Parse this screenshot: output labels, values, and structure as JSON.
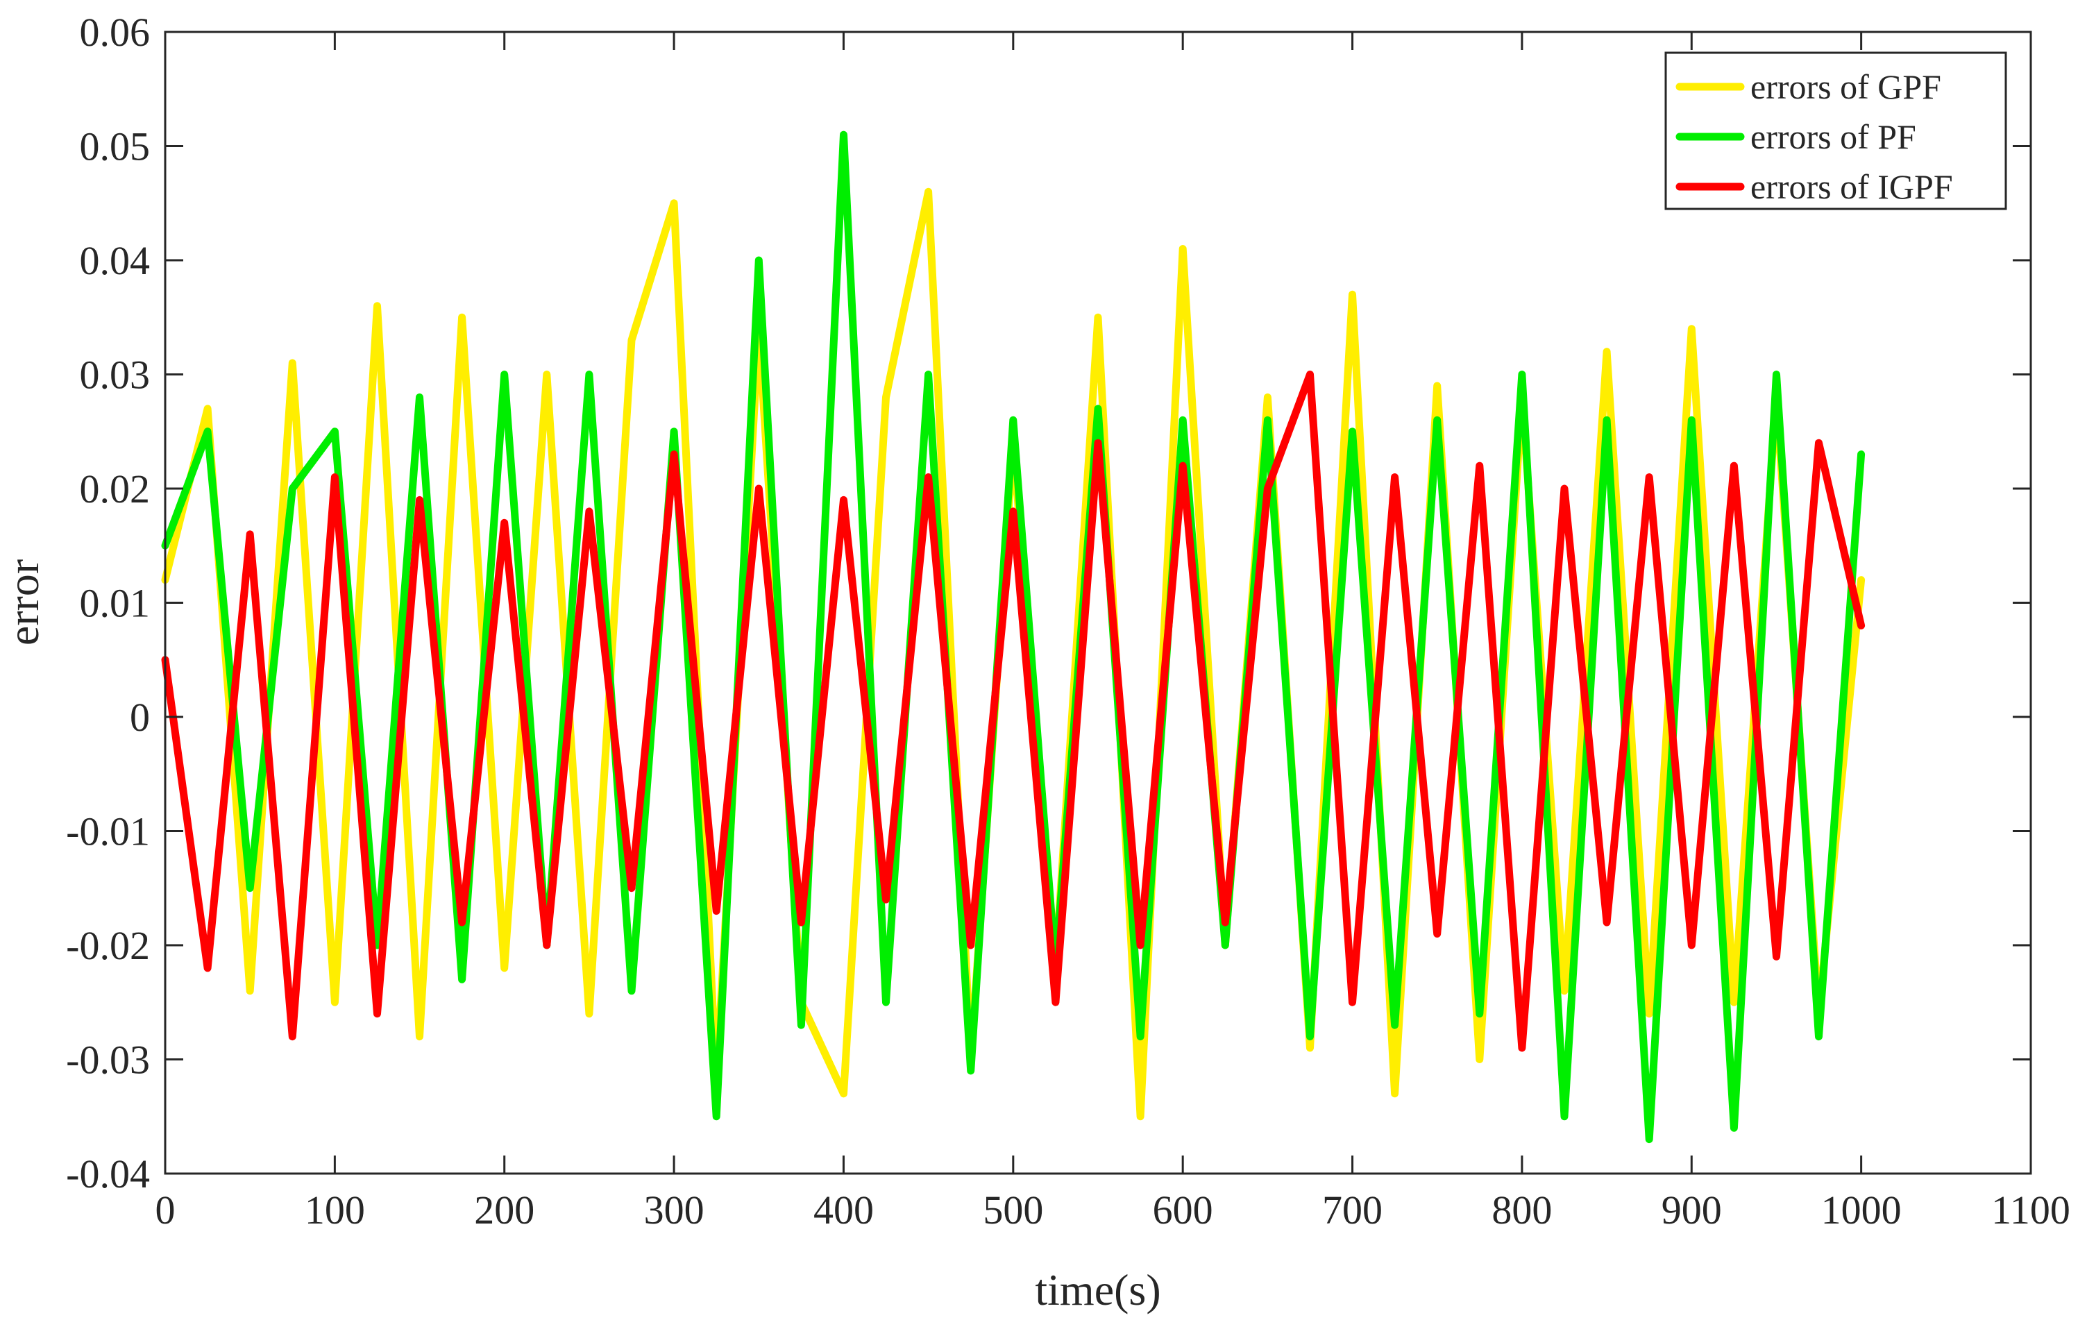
{
  "chart_data": {
    "type": "line",
    "title": "",
    "xlabel": "time(s)",
    "ylabel": "error",
    "xlim": [
      0,
      1100
    ],
    "ylim": [
      -0.04,
      0.06
    ],
    "x_ticks": [
      0,
      100,
      200,
      300,
      400,
      500,
      600,
      700,
      800,
      900,
      1000,
      1100
    ],
    "x_tick_labels": [
      "0",
      "100",
      "200",
      "300",
      "400",
      "500",
      "600",
      "700",
      "800",
      "900",
      "1000",
      "1100"
    ],
    "y_ticks": [
      -0.04,
      -0.03,
      -0.02,
      -0.01,
      0,
      0.01,
      0.02,
      0.03,
      0.04,
      0.05,
      0.06
    ],
    "y_tick_labels": [
      "-0.04",
      "-0.03",
      "-0.02",
      "-0.01",
      "0",
      "0.01",
      "0.02",
      "0.03",
      "0.04",
      "0.05",
      "0.06"
    ],
    "grid": false,
    "legend_position": "top-right",
    "x": [
      0,
      25,
      50,
      75,
      100,
      125,
      150,
      175,
      200,
      225,
      250,
      275,
      300,
      325,
      350,
      375,
      400,
      425,
      450,
      475,
      500,
      525,
      550,
      575,
      600,
      625,
      650,
      675,
      700,
      725,
      750,
      775,
      800,
      825,
      850,
      875,
      900,
      925,
      950,
      975,
      1000
    ],
    "series": [
      {
        "name": "errors of GPF",
        "color": "#FFEE00",
        "values": [
          0.012,
          0.027,
          -0.024,
          0.031,
          -0.025,
          0.036,
          -0.028,
          0.035,
          -0.022,
          0.03,
          -0.026,
          0.033,
          0.045,
          -0.032,
          0.034,
          -0.025,
          -0.033,
          0.028,
          0.046,
          -0.03,
          0.024,
          -0.022,
          0.035,
          -0.035,
          0.041,
          -0.02,
          0.028,
          -0.029,
          0.037,
          -0.033,
          0.029,
          -0.03,
          0.028,
          -0.024,
          0.032,
          -0.026,
          0.034,
          -0.025,
          0.028,
          -0.026,
          0.012
        ]
      },
      {
        "name": "errors of PF",
        "color": "#00EE00",
        "values": [
          0.015,
          0.025,
          -0.015,
          0.02,
          0.025,
          -0.02,
          0.028,
          -0.023,
          0.03,
          -0.02,
          0.03,
          -0.024,
          0.025,
          -0.035,
          0.04,
          -0.027,
          0.051,
          -0.025,
          0.03,
          -0.031,
          0.026,
          -0.022,
          0.027,
          -0.028,
          0.026,
          -0.02,
          0.026,
          -0.028,
          0.025,
          -0.027,
          0.026,
          -0.026,
          0.03,
          -0.035,
          0.026,
          -0.037,
          0.026,
          -0.036,
          0.03,
          -0.028,
          0.023
        ]
      },
      {
        "name": "errors of IGPF",
        "color": "#FF0000",
        "values": [
          0.005,
          -0.022,
          0.016,
          -0.028,
          0.021,
          -0.026,
          0.019,
          -0.018,
          0.017,
          -0.02,
          0.018,
          -0.015,
          0.023,
          -0.017,
          0.02,
          -0.018,
          0.019,
          -0.016,
          0.021,
          -0.02,
          0.018,
          -0.025,
          0.024,
          -0.02,
          0.022,
          -0.018,
          0.02,
          0.03,
          -0.025,
          0.021,
          -0.019,
          0.022,
          -0.029,
          0.02,
          -0.018,
          0.021,
          -0.02,
          0.022,
          -0.021,
          0.024,
          0.008
        ]
      }
    ]
  }
}
